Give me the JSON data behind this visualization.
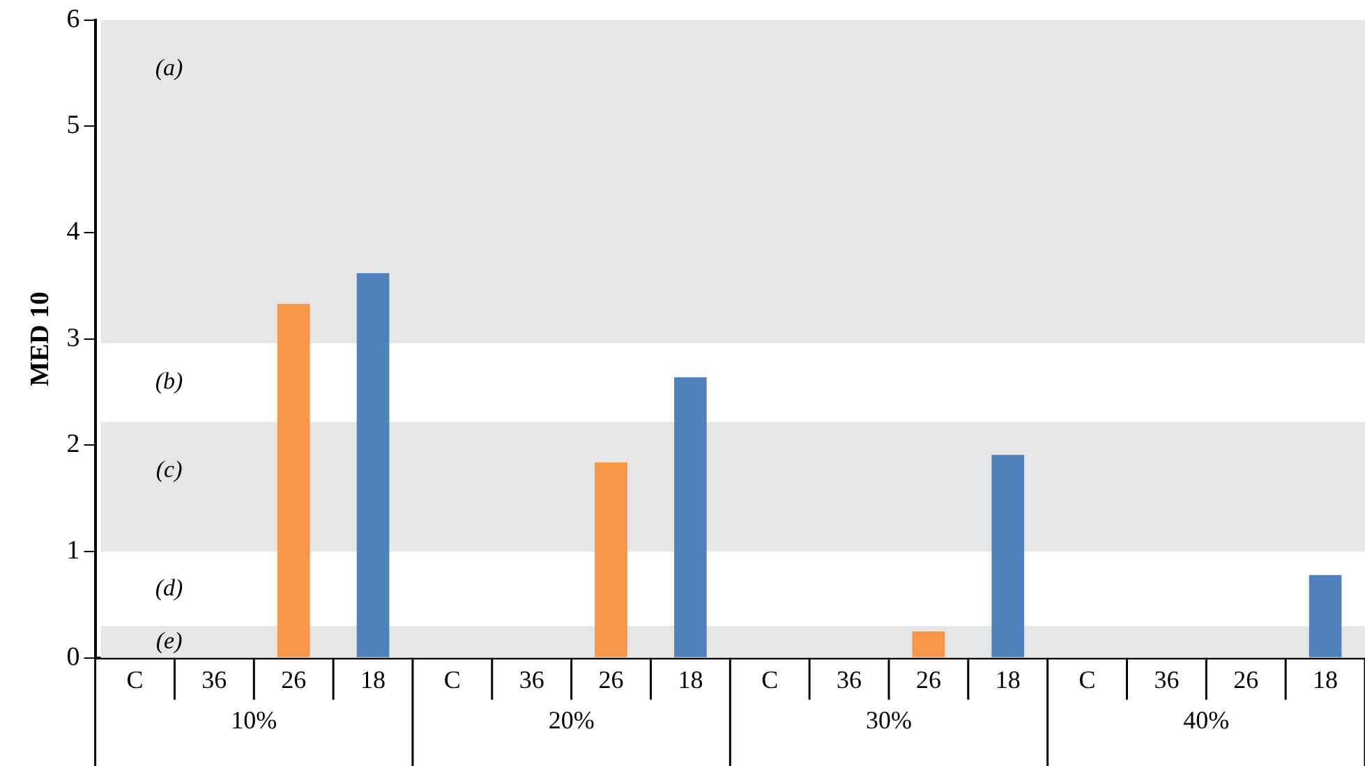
{
  "chart_data": {
    "type": "bar",
    "ylabel": "MED 10",
    "categories": [
      "C",
      "36",
      "26",
      "18",
      "C",
      "36",
      "26",
      "18",
      "C",
      "36",
      "26",
      "18",
      "C",
      "36",
      "26",
      "18"
    ],
    "values": [
      0,
      0,
      3.33,
      3.62,
      0,
      0,
      1.84,
      2.64,
      0,
      0,
      0.25,
      1.91,
      0,
      0,
      0,
      0.78
    ],
    "colors": [
      "#4f81bd",
      "#4f81bd",
      "#f79646",
      "#4f81bd",
      "#4f81bd",
      "#4f81bd",
      "#f79646",
      "#4f81bd",
      "#4f81bd",
      "#4f81bd",
      "#f79646",
      "#4f81bd",
      "#4f81bd",
      "#4f81bd",
      "#f79646",
      "#4f81bd"
    ],
    "ylim": [
      0,
      6
    ],
    "yticks": [
      0,
      1,
      2,
      3,
      4,
      5,
      6
    ],
    "grid": false,
    "legend": false,
    "bands": [
      {
        "axis": "y",
        "from": 2.96,
        "to": 6,
        "label": "(a)",
        "color": "#e6e6e6"
      },
      {
        "axis": "y",
        "from": 1,
        "to": 2.22,
        "label": "(c)",
        "color": "#e6e6e6"
      },
      {
        "axis": "y",
        "from": 0,
        "to": 0.3,
        "label": "(e)",
        "color": "#e6e6e6"
      }
    ],
    "annotations": [
      "10%",
      "20%",
      "30%",
      "40%",
      "(b)",
      "(d)"
    ]
  }
}
